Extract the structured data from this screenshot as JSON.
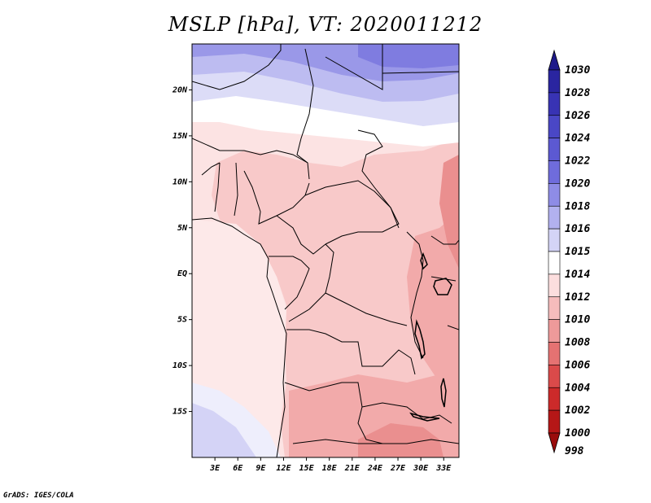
{
  "title": "MSLP [hPa], VT: 2020011212",
  "credit": "GrADS: IGES/COLA",
  "map": {
    "lat_labels": [
      "20N",
      "15N",
      "10N",
      "5N",
      "EQ",
      "5S",
      "10S",
      "15S"
    ],
    "lat_values": [
      20,
      15,
      10,
      5,
      0,
      -5,
      -10,
      -15
    ],
    "lon_labels": [
      "3E",
      "6E",
      "9E",
      "12E",
      "15E",
      "18E",
      "21E",
      "24E",
      "27E",
      "30E",
      "33E"
    ],
    "lon_values": [
      3,
      6,
      9,
      12,
      15,
      18,
      21,
      24,
      27,
      30,
      33
    ],
    "lon_range": [
      0,
      35
    ],
    "lat_range": [
      -20,
      25
    ]
  },
  "colorbar": {
    "levels": [
      "1030",
      "1028",
      "1026",
      "1024",
      "1022",
      "1020",
      "1018",
      "1016",
      "1015",
      "1014",
      "1012",
      "1010",
      "1008",
      "1006",
      "1004",
      "1002",
      "1000",
      "998"
    ],
    "colors": [
      "#1e1a8a",
      "#2a25a0",
      "#3833b4",
      "#4a47c6",
      "#5c59d2",
      "#6f6cdc",
      "#8e8ce6",
      "#b2b1ef",
      "#d4d4f6",
      "#ffffff",
      "#fcdede",
      "#f6bcbc",
      "#ee9a9a",
      "#e57272",
      "#da4a4a",
      "#cc2a2a",
      "#b51717",
      "#9a0c0c"
    ]
  }
}
